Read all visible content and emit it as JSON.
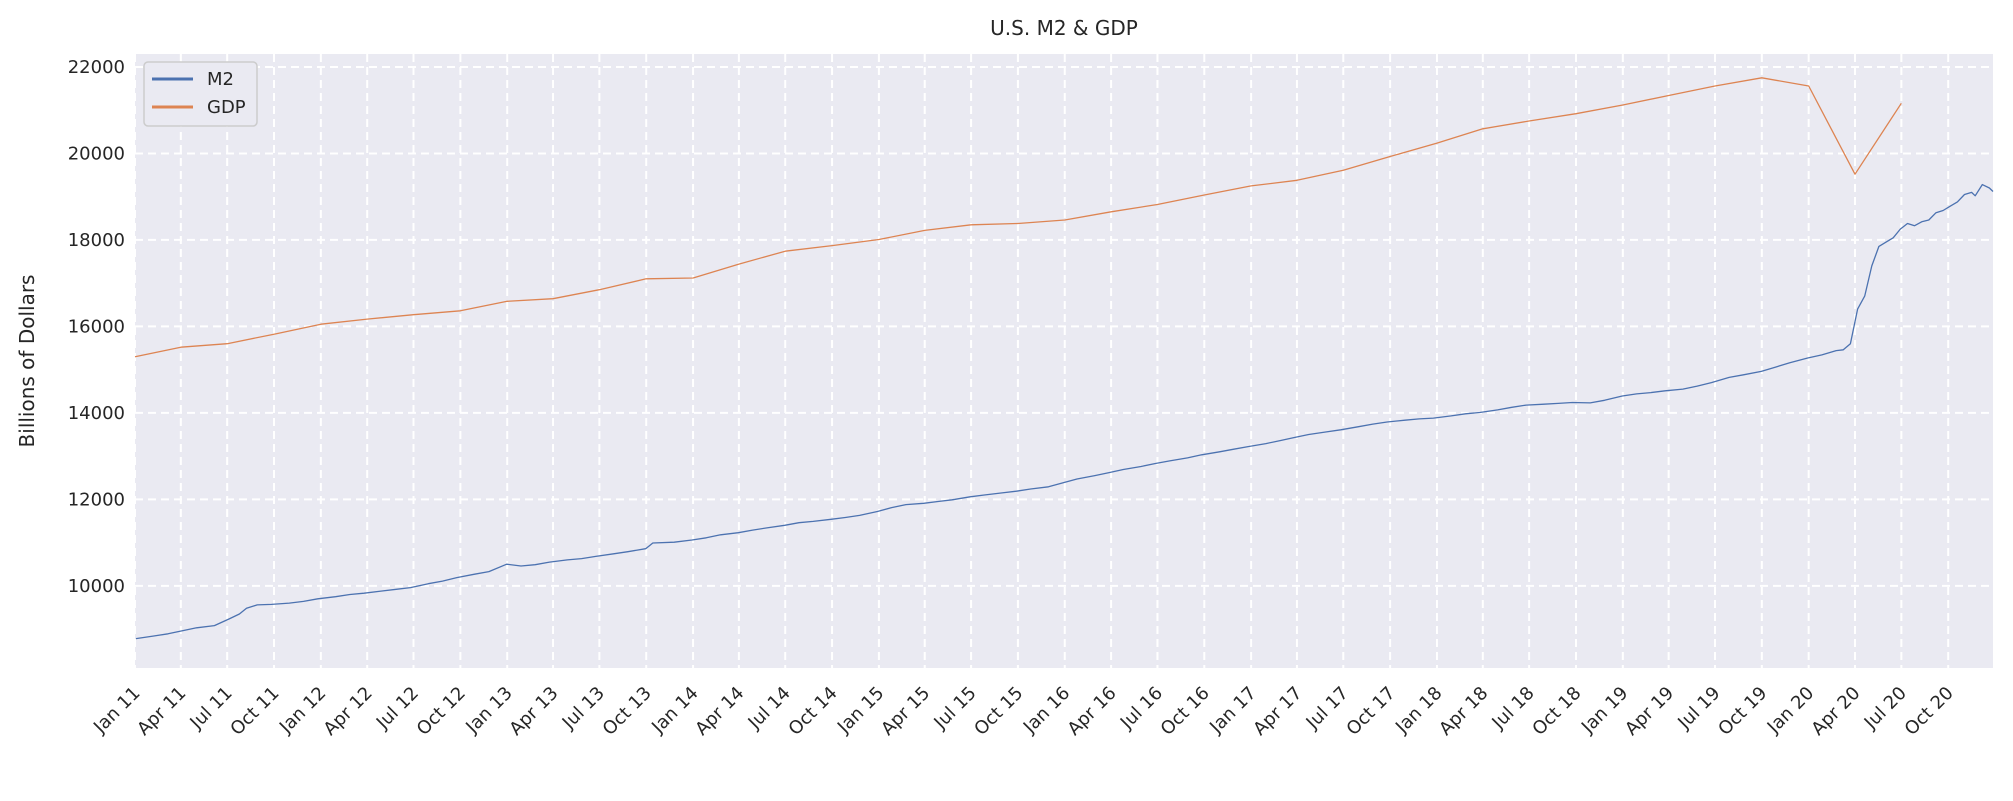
{
  "chart_data": {
    "type": "line",
    "title": "U.S. M2 & GDP",
    "xlabel": "",
    "ylabel": "Billions of Dollars",
    "ylim": [
      8100,
      22300
    ],
    "xlim": [
      "2011-01-01",
      "2020-12-28"
    ],
    "grid": true,
    "legend": "top-left",
    "colors": {
      "plot_bg": "#eaeaf2",
      "grid": "#ffffff",
      "text": "#262626"
    },
    "x_ticks": [
      {
        "label": "Jan 11",
        "date": "2011-01-01"
      },
      {
        "label": "Apr 11",
        "date": "2011-04-01"
      },
      {
        "label": "Jul 11",
        "date": "2011-07-01"
      },
      {
        "label": "Oct 11",
        "date": "2011-10-01"
      },
      {
        "label": "Jan 12",
        "date": "2012-01-01"
      },
      {
        "label": "Apr 12",
        "date": "2012-04-01"
      },
      {
        "label": "Jul 12",
        "date": "2012-07-01"
      },
      {
        "label": "Oct 12",
        "date": "2012-10-01"
      },
      {
        "label": "Jan 13",
        "date": "2013-01-01"
      },
      {
        "label": "Apr 13",
        "date": "2013-04-01"
      },
      {
        "label": "Jul 13",
        "date": "2013-07-01"
      },
      {
        "label": "Oct 13",
        "date": "2013-10-01"
      },
      {
        "label": "Jan 14",
        "date": "2014-01-01"
      },
      {
        "label": "Apr 14",
        "date": "2014-04-01"
      },
      {
        "label": "Jul 14",
        "date": "2014-07-01"
      },
      {
        "label": "Oct 14",
        "date": "2014-10-01"
      },
      {
        "label": "Jan 15",
        "date": "2015-01-01"
      },
      {
        "label": "Apr 15",
        "date": "2015-04-01"
      },
      {
        "label": "Jul 15",
        "date": "2015-07-01"
      },
      {
        "label": "Oct 15",
        "date": "2015-10-01"
      },
      {
        "label": "Jan 16",
        "date": "2016-01-01"
      },
      {
        "label": "Apr 16",
        "date": "2016-04-01"
      },
      {
        "label": "Jul 16",
        "date": "2016-07-01"
      },
      {
        "label": "Oct 16",
        "date": "2016-10-01"
      },
      {
        "label": "Jan 17",
        "date": "2017-01-01"
      },
      {
        "label": "Apr 17",
        "date": "2017-04-01"
      },
      {
        "label": "Jul 17",
        "date": "2017-07-01"
      },
      {
        "label": "Oct 17",
        "date": "2017-10-01"
      },
      {
        "label": "Jan 18",
        "date": "2018-01-01"
      },
      {
        "label": "Apr 18",
        "date": "2018-04-01"
      },
      {
        "label": "Jul 18",
        "date": "2018-07-01"
      },
      {
        "label": "Oct 18",
        "date": "2018-10-01"
      },
      {
        "label": "Jan 19",
        "date": "2019-01-01"
      },
      {
        "label": "Apr 19",
        "date": "2019-04-01"
      },
      {
        "label": "Jul 19",
        "date": "2019-07-01"
      },
      {
        "label": "Oct 19",
        "date": "2019-10-01"
      },
      {
        "label": "Jan 20",
        "date": "2020-01-01"
      },
      {
        "label": "Apr 20",
        "date": "2020-04-01"
      },
      {
        "label": "Jul 20",
        "date": "2020-07-01"
      },
      {
        "label": "Oct 20",
        "date": "2020-10-01"
      }
    ],
    "y_ticks": [
      10000,
      12000,
      14000,
      16000,
      18000,
      20000,
      22000
    ],
    "series": [
      {
        "name": "M2",
        "color": "#4c72b0",
        "points": [
          [
            "2011-01-03",
            8780
          ],
          [
            "2011-02-07",
            8840
          ],
          [
            "2011-03-07",
            8890
          ],
          [
            "2011-04-04",
            8960
          ],
          [
            "2011-05-02",
            9030
          ],
          [
            "2011-06-06",
            9080
          ],
          [
            "2011-07-04",
            9230
          ],
          [
            "2011-07-25",
            9350
          ],
          [
            "2011-08-08",
            9480
          ],
          [
            "2011-08-29",
            9560
          ],
          [
            "2011-09-26",
            9570
          ],
          [
            "2011-10-31",
            9600
          ],
          [
            "2011-11-28",
            9640
          ],
          [
            "2011-12-26",
            9700
          ],
          [
            "2012-01-30",
            9750
          ],
          [
            "2012-02-27",
            9800
          ],
          [
            "2012-03-26",
            9830
          ],
          [
            "2012-04-30",
            9880
          ],
          [
            "2012-05-28",
            9920
          ],
          [
            "2012-06-25",
            9960
          ],
          [
            "2012-07-30",
            10050
          ],
          [
            "2012-08-27",
            10110
          ],
          [
            "2012-09-24",
            10190
          ],
          [
            "2012-10-29",
            10270
          ],
          [
            "2012-11-26",
            10330
          ],
          [
            "2012-12-31",
            10500
          ],
          [
            "2013-01-28",
            10460
          ],
          [
            "2013-02-25",
            10490
          ],
          [
            "2013-03-25",
            10550
          ],
          [
            "2013-04-29",
            10600
          ],
          [
            "2013-05-27",
            10630
          ],
          [
            "2013-06-24",
            10680
          ],
          [
            "2013-07-29",
            10740
          ],
          [
            "2013-08-26",
            10790
          ],
          [
            "2013-09-30",
            10860
          ],
          [
            "2013-10-14",
            10990
          ],
          [
            "2013-11-25",
            11010
          ],
          [
            "2013-12-30",
            11060
          ],
          [
            "2014-01-27",
            11110
          ],
          [
            "2014-02-24",
            11180
          ],
          [
            "2014-03-31",
            11230
          ],
          [
            "2014-04-28",
            11290
          ],
          [
            "2014-05-26",
            11340
          ],
          [
            "2014-06-30",
            11400
          ],
          [
            "2014-07-28",
            11460
          ],
          [
            "2014-08-25",
            11490
          ],
          [
            "2014-09-29",
            11540
          ],
          [
            "2014-10-27",
            11580
          ],
          [
            "2014-11-24",
            11630
          ],
          [
            "2014-12-29",
            11720
          ],
          [
            "2015-01-26",
            11810
          ],
          [
            "2015-02-23",
            11880
          ],
          [
            "2015-03-30",
            11910
          ],
          [
            "2015-04-27",
            11950
          ],
          [
            "2015-05-25",
            11990
          ],
          [
            "2015-06-29",
            12060
          ],
          [
            "2015-07-27",
            12100
          ],
          [
            "2015-08-31",
            12150
          ],
          [
            "2015-09-28",
            12190
          ],
          [
            "2015-10-26",
            12240
          ],
          [
            "2015-11-30",
            12290
          ],
          [
            "2015-12-28",
            12380
          ],
          [
            "2016-01-25",
            12470
          ],
          [
            "2016-02-29",
            12550
          ],
          [
            "2016-03-28",
            12620
          ],
          [
            "2016-04-25",
            12690
          ],
          [
            "2016-05-30",
            12760
          ],
          [
            "2016-06-27",
            12830
          ],
          [
            "2016-07-25",
            12890
          ],
          [
            "2016-08-29",
            12960
          ],
          [
            "2016-09-26",
            13030
          ],
          [
            "2016-10-31",
            13100
          ],
          [
            "2016-11-28",
            13160
          ],
          [
            "2016-12-26",
            13220
          ],
          [
            "2017-01-30",
            13290
          ],
          [
            "2017-02-27",
            13360
          ],
          [
            "2017-03-27",
            13430
          ],
          [
            "2017-04-24",
            13500
          ],
          [
            "2017-05-29",
            13560
          ],
          [
            "2017-06-26",
            13610
          ],
          [
            "2017-07-31",
            13680
          ],
          [
            "2017-08-28",
            13740
          ],
          [
            "2017-09-25",
            13790
          ],
          [
            "2017-10-30",
            13830
          ],
          [
            "2017-11-27",
            13860
          ],
          [
            "2017-12-25",
            13880
          ],
          [
            "2018-01-29",
            13930
          ],
          [
            "2018-02-26",
            13980
          ],
          [
            "2018-03-26",
            14010
          ],
          [
            "2018-04-30",
            14070
          ],
          [
            "2018-05-28",
            14130
          ],
          [
            "2018-06-25",
            14180
          ],
          [
            "2018-07-30",
            14200
          ],
          [
            "2018-08-27",
            14220
          ],
          [
            "2018-09-24",
            14240
          ],
          [
            "2018-10-29",
            14230
          ],
          [
            "2018-11-26",
            14290
          ],
          [
            "2018-12-31",
            14390
          ],
          [
            "2019-01-28",
            14440
          ],
          [
            "2019-02-25",
            14470
          ],
          [
            "2019-03-25",
            14510
          ],
          [
            "2019-04-29",
            14550
          ],
          [
            "2019-05-27",
            14620
          ],
          [
            "2019-06-24",
            14700
          ],
          [
            "2019-07-29",
            14820
          ],
          [
            "2019-08-26",
            14880
          ],
          [
            "2019-09-30",
            14960
          ],
          [
            "2019-10-28",
            15060
          ],
          [
            "2019-11-25",
            15160
          ],
          [
            "2019-12-30",
            15270
          ],
          [
            "2020-01-27",
            15340
          ],
          [
            "2020-02-24",
            15440
          ],
          [
            "2020-03-09",
            15460
          ],
          [
            "2020-03-23",
            15600
          ],
          [
            "2020-04-06",
            16400
          ],
          [
            "2020-04-20",
            16700
          ],
          [
            "2020-05-04",
            17400
          ],
          [
            "2020-05-18",
            17850
          ],
          [
            "2020-06-01",
            17950
          ],
          [
            "2020-06-15",
            18050
          ],
          [
            "2020-06-29",
            18250
          ],
          [
            "2020-07-13",
            18380
          ],
          [
            "2020-07-27",
            18330
          ],
          [
            "2020-08-10",
            18420
          ],
          [
            "2020-08-24",
            18460
          ],
          [
            "2020-09-07",
            18630
          ],
          [
            "2020-09-21",
            18680
          ],
          [
            "2020-10-05",
            18780
          ],
          [
            "2020-10-19",
            18880
          ],
          [
            "2020-11-02",
            19050
          ],
          [
            "2020-11-16",
            19100
          ],
          [
            "2020-11-23",
            19020
          ],
          [
            "2020-12-07",
            19280
          ],
          [
            "2020-12-21",
            19200
          ],
          [
            "2020-12-28",
            19120
          ]
        ]
      },
      {
        "name": "GDP",
        "color": "#dd8452",
        "points": [
          [
            "2011-01-01",
            15300
          ],
          [
            "2011-04-01",
            15520
          ],
          [
            "2011-07-01",
            15600
          ],
          [
            "2011-10-01",
            15820
          ],
          [
            "2012-01-01",
            16050
          ],
          [
            "2012-04-01",
            16170
          ],
          [
            "2012-07-01",
            16270
          ],
          [
            "2012-10-01",
            16360
          ],
          [
            "2013-01-01",
            16580
          ],
          [
            "2013-04-01",
            16640
          ],
          [
            "2013-07-01",
            16850
          ],
          [
            "2013-10-01",
            17100
          ],
          [
            "2014-01-01",
            17120
          ],
          [
            "2014-04-01",
            17440
          ],
          [
            "2014-07-01",
            17740
          ],
          [
            "2014-10-01",
            17870
          ],
          [
            "2015-01-01",
            18010
          ],
          [
            "2015-04-01",
            18220
          ],
          [
            "2015-07-01",
            18350
          ],
          [
            "2015-10-01",
            18380
          ],
          [
            "2016-01-01",
            18460
          ],
          [
            "2016-04-01",
            18650
          ],
          [
            "2016-07-01",
            18820
          ],
          [
            "2016-10-01",
            19040
          ],
          [
            "2017-01-01",
            19250
          ],
          [
            "2017-04-01",
            19380
          ],
          [
            "2017-07-01",
            19610
          ],
          [
            "2017-10-01",
            19930
          ],
          [
            "2018-01-01",
            20240
          ],
          [
            "2018-04-01",
            20570
          ],
          [
            "2018-07-01",
            20750
          ],
          [
            "2018-10-01",
            20920
          ],
          [
            "2019-01-01",
            21120
          ],
          [
            "2019-04-01",
            21340
          ],
          [
            "2019-07-01",
            21560
          ],
          [
            "2019-10-01",
            21750
          ],
          [
            "2020-01-01",
            21560
          ],
          [
            "2020-04-01",
            19520
          ],
          [
            "2020-07-01",
            21160
          ]
        ]
      }
    ]
  }
}
